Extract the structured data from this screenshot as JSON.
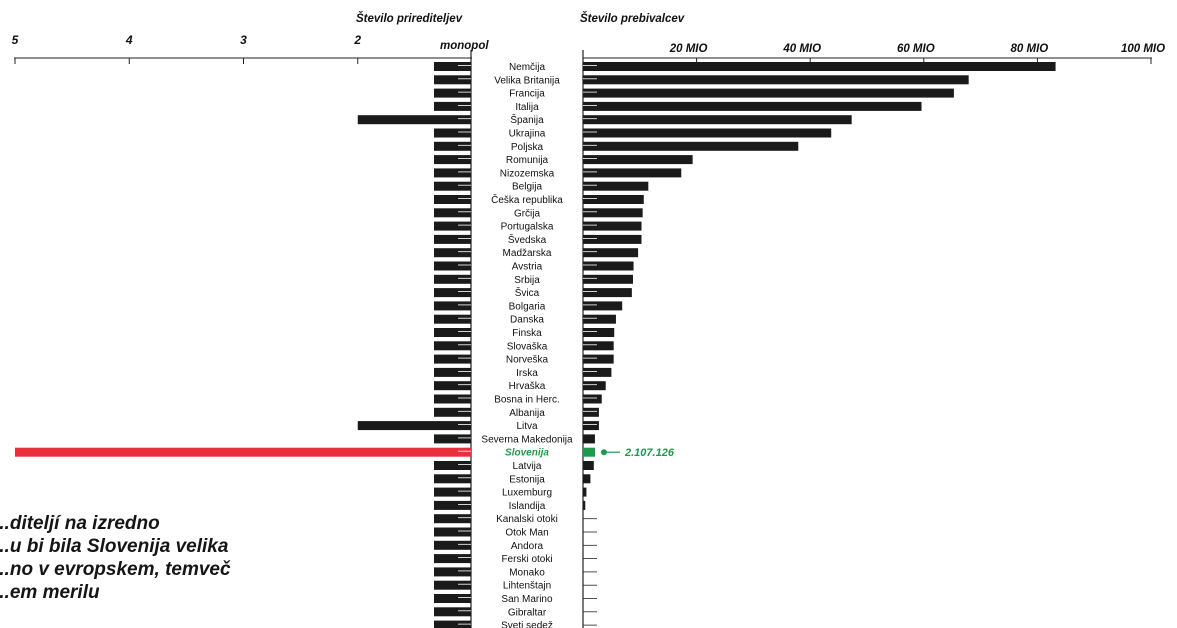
{
  "headers": {
    "left": "Število prirediteljev",
    "monopol": "monopol",
    "right": "Število prebivalcev"
  },
  "chart_data": {
    "type": "bar",
    "highlight": "Slovenija",
    "highlight_label": "2.107.126",
    "colors": {
      "bars": "#1a1a1a",
      "organizers_highlight": "#e8303c",
      "population_highlight": "#1e9a4c",
      "highlight_text": "#1e9a4c"
    },
    "left_axis": {
      "label": "Število prirediteljev",
      "ticks": [
        "5",
        "4",
        "3",
        "2"
      ],
      "range": [
        1,
        5
      ]
    },
    "right_axis": {
      "label": "Število prebivalcev",
      "ticks": [
        "20 MIO",
        "40 MIO",
        "60 MIO",
        "80 MIO",
        "100 MIO"
      ],
      "range_mio": [
        0,
        100
      ]
    },
    "categories": [
      "Nemčija",
      "Velika Britanija",
      "Francija",
      "Italija",
      "Španija",
      "Ukrajina",
      "Poljska",
      "Romunija",
      "Nizozemska",
      "Belgija",
      "Češka republika",
      "Grčija",
      "Portugalska",
      "Švedska",
      "Madžarska",
      "Avstria",
      "Srbija",
      "Švica",
      "Bolgaria",
      "Danska",
      "Finska",
      "Slovaška",
      "Norveška",
      "Irska",
      "Hrvaška",
      "Bosna in Herc.",
      "Albanija",
      "Litva",
      "Severna Makedonija",
      "Slovenija",
      "Latvija",
      "Estonija",
      "Luxemburg",
      "Islandija",
      "Kanalski otoki",
      "Otok Man",
      "Andora",
      "Ferski otoki",
      "Monako",
      "Lihtenštajn",
      "San Marino",
      "Gibraltar",
      "Sveti sedež"
    ],
    "series": [
      {
        "name": "Število prirediteljev",
        "values": [
          1,
          1,
          1,
          1,
          2,
          1,
          1,
          1,
          1,
          1,
          1,
          1,
          1,
          1,
          1,
          1,
          1,
          1,
          1,
          1,
          1,
          1,
          1,
          1,
          1,
          1,
          1,
          2,
          1,
          5,
          1,
          1,
          1,
          1,
          1,
          1,
          1,
          1,
          1,
          1,
          1,
          1,
          1
        ]
      },
      {
        "name": "Število prebivalcev",
        "values_mio": [
          83.2,
          67.9,
          65.3,
          59.6,
          47.3,
          43.7,
          37.9,
          19.3,
          17.3,
          11.5,
          10.7,
          10.5,
          10.3,
          10.3,
          9.7,
          8.9,
          8.8,
          8.6,
          6.9,
          5.8,
          5.5,
          5.4,
          5.4,
          5.0,
          4.0,
          3.3,
          2.8,
          2.8,
          2.1,
          2.1,
          1.9,
          1.3,
          0.6,
          0.4,
          0.17,
          0.08,
          0.08,
          0.05,
          0.04,
          0.04,
          0.03,
          0.03,
          0.001
        ]
      }
    ]
  },
  "note_lines": [
    "...diteljí na izredno",
    "...u bi bila Slovenija velika",
    "...no v evropskem, temveč",
    "...em merilu"
  ]
}
